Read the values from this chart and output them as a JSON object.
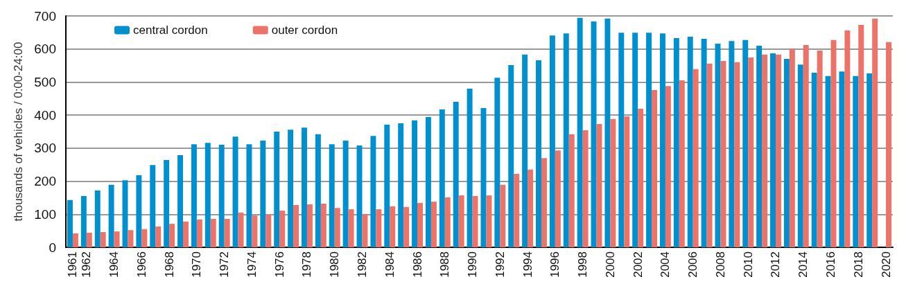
{
  "chart_data": {
    "type": "bar",
    "ylabel": "thousands of vehicles / 0:00-24:00",
    "categories": [
      "1961",
      "1962",
      null,
      "1964",
      null,
      "1966",
      null,
      "1968",
      null,
      "1970",
      null,
      "1972",
      null,
      "1974",
      null,
      "1976",
      null,
      "1978",
      null,
      "1980",
      null,
      "1982",
      null,
      "1984",
      null,
      "1986",
      null,
      "1988",
      null,
      "1990",
      null,
      "1992",
      null,
      "1994",
      null,
      "1996",
      null,
      "1998",
      null,
      "2000",
      null,
      "2002",
      null,
      "2004",
      null,
      "2006",
      null,
      "2008",
      null,
      "2010",
      null,
      "2012",
      null,
      "2014",
      null,
      "2016",
      null,
      "2018",
      null,
      "2020"
    ],
    "series": [
      {
        "name": "central cordon",
        "color": "#0090d0",
        "values": [
          143,
          155,
          172,
          189,
          203,
          218,
          249,
          264,
          279,
          312,
          316,
          310,
          335,
          312,
          323,
          350,
          356,
          362,
          342,
          312,
          323,
          308,
          337,
          371,
          375,
          384,
          394,
          417,
          440,
          480,
          421,
          513,
          551,
          583,
          566,
          641,
          647,
          694,
          683,
          692,
          649,
          649,
          649,
          647,
          633,
          637,
          631,
          616,
          624,
          627,
          610,
          587,
          570,
          553,
          528,
          518,
          532,
          518,
          526,
          null
        ]
      },
      {
        "name": "outer cordon",
        "color": "#ec7369",
        "values": [
          42,
          44,
          46,
          48,
          52,
          55,
          63,
          71,
          78,
          84,
          86,
          86,
          105,
          96,
          99,
          111,
          128,
          130,
          132,
          119,
          115,
          99,
          115,
          124,
          122,
          134,
          138,
          151,
          157,
          155,
          157,
          189,
          222,
          235,
          270,
          293,
          342,
          354,
          373,
          388,
          396,
          419,
          476,
          488,
          505,
          539,
          556,
          564,
          560,
          574,
          583,
          583,
          600,
          612,
          595,
          627,
          656,
          673,
          692,
          621
        ]
      }
    ],
    "ylim": [
      0,
      700
    ],
    "yticks": [
      0,
      100,
      200,
      300,
      400,
      500,
      600,
      700
    ],
    "grid": "y",
    "legend": "top left"
  }
}
